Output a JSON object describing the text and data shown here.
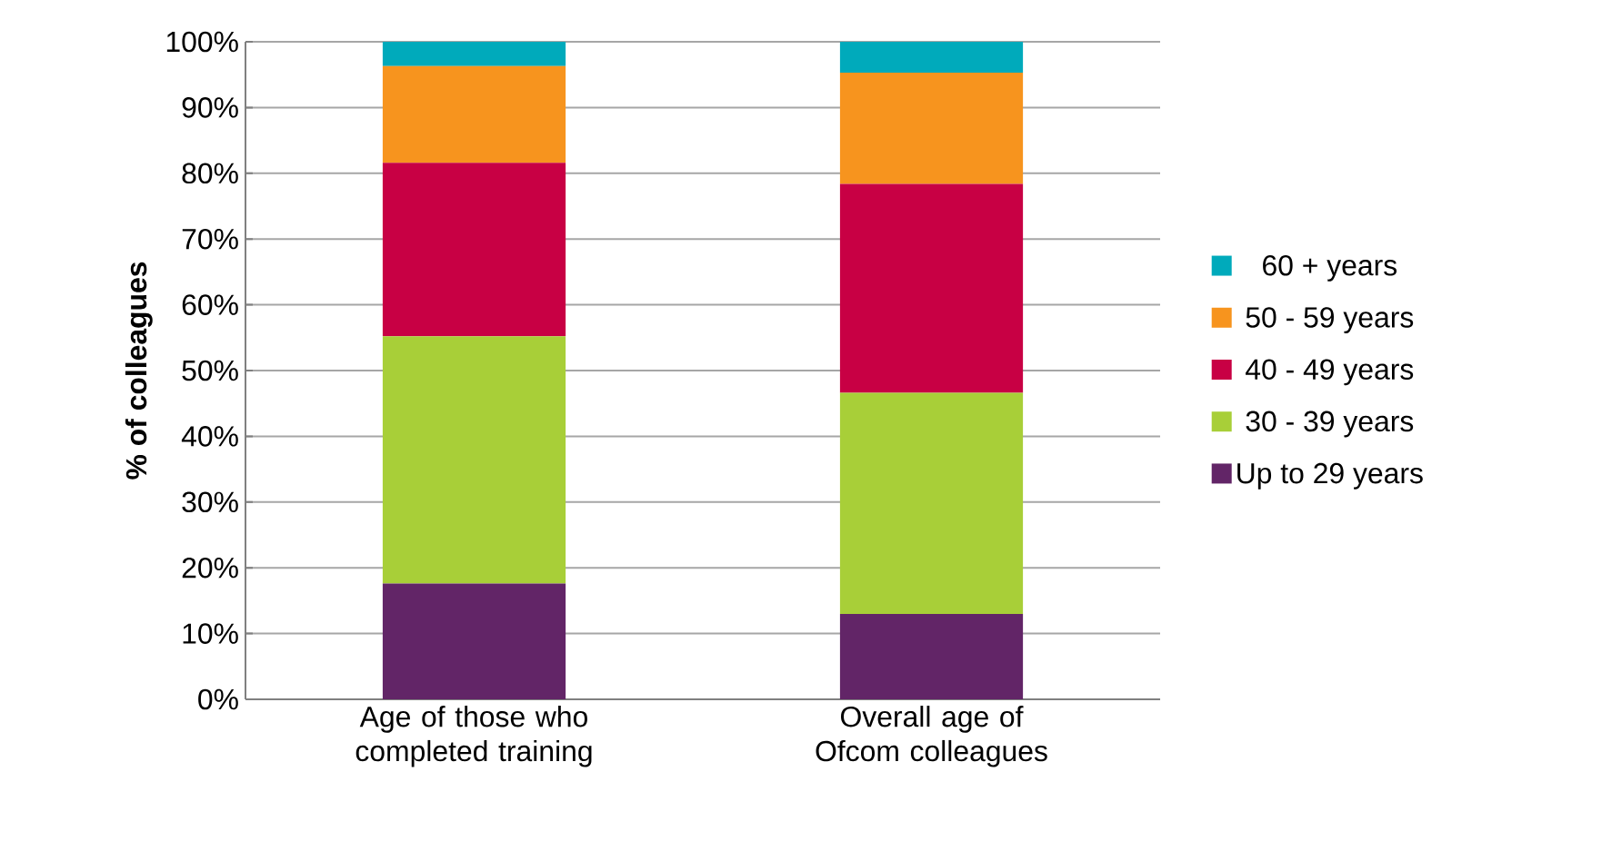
{
  "chart_data": {
    "type": "bar",
    "stacked": true,
    "ylabel": "% of colleagues",
    "categories": [
      "Age of those who completed training",
      "Overall age of Ofcom colleagues"
    ],
    "series": [
      {
        "name": "Up to 29 years",
        "color": "#622567",
        "values": [
          17.6,
          13.0
        ]
      },
      {
        "name": "30 - 39 years",
        "color": "#a8cf38",
        "values": [
          37.6,
          33.6
        ]
      },
      {
        "name": "40 - 49 years",
        "color": "#c80044",
        "values": [
          26.4,
          31.8
        ]
      },
      {
        "name": "50 - 59 years",
        "color": "#f7941e",
        "values": [
          14.7,
          16.9
        ]
      },
      {
        "name": "60 + years",
        "color": "#00aabb",
        "values": [
          3.7,
          4.7
        ]
      }
    ],
    "ylim": [
      0,
      100
    ],
    "yticks": [
      {
        "value": 0,
        "label": "0%"
      },
      {
        "value": 10,
        "label": "10%"
      },
      {
        "value": 20,
        "label": "20%"
      },
      {
        "value": 30,
        "label": "30%"
      },
      {
        "value": 40,
        "label": "40%"
      },
      {
        "value": 50,
        "label": "50%"
      },
      {
        "value": 60,
        "label": "60%"
      },
      {
        "value": 70,
        "label": "70%"
      },
      {
        "value": 80,
        "label": "80%"
      },
      {
        "value": 90,
        "label": "90%"
      },
      {
        "value": 100,
        "label": "100%"
      }
    ],
    "grid": "y",
    "legend": "right"
  }
}
